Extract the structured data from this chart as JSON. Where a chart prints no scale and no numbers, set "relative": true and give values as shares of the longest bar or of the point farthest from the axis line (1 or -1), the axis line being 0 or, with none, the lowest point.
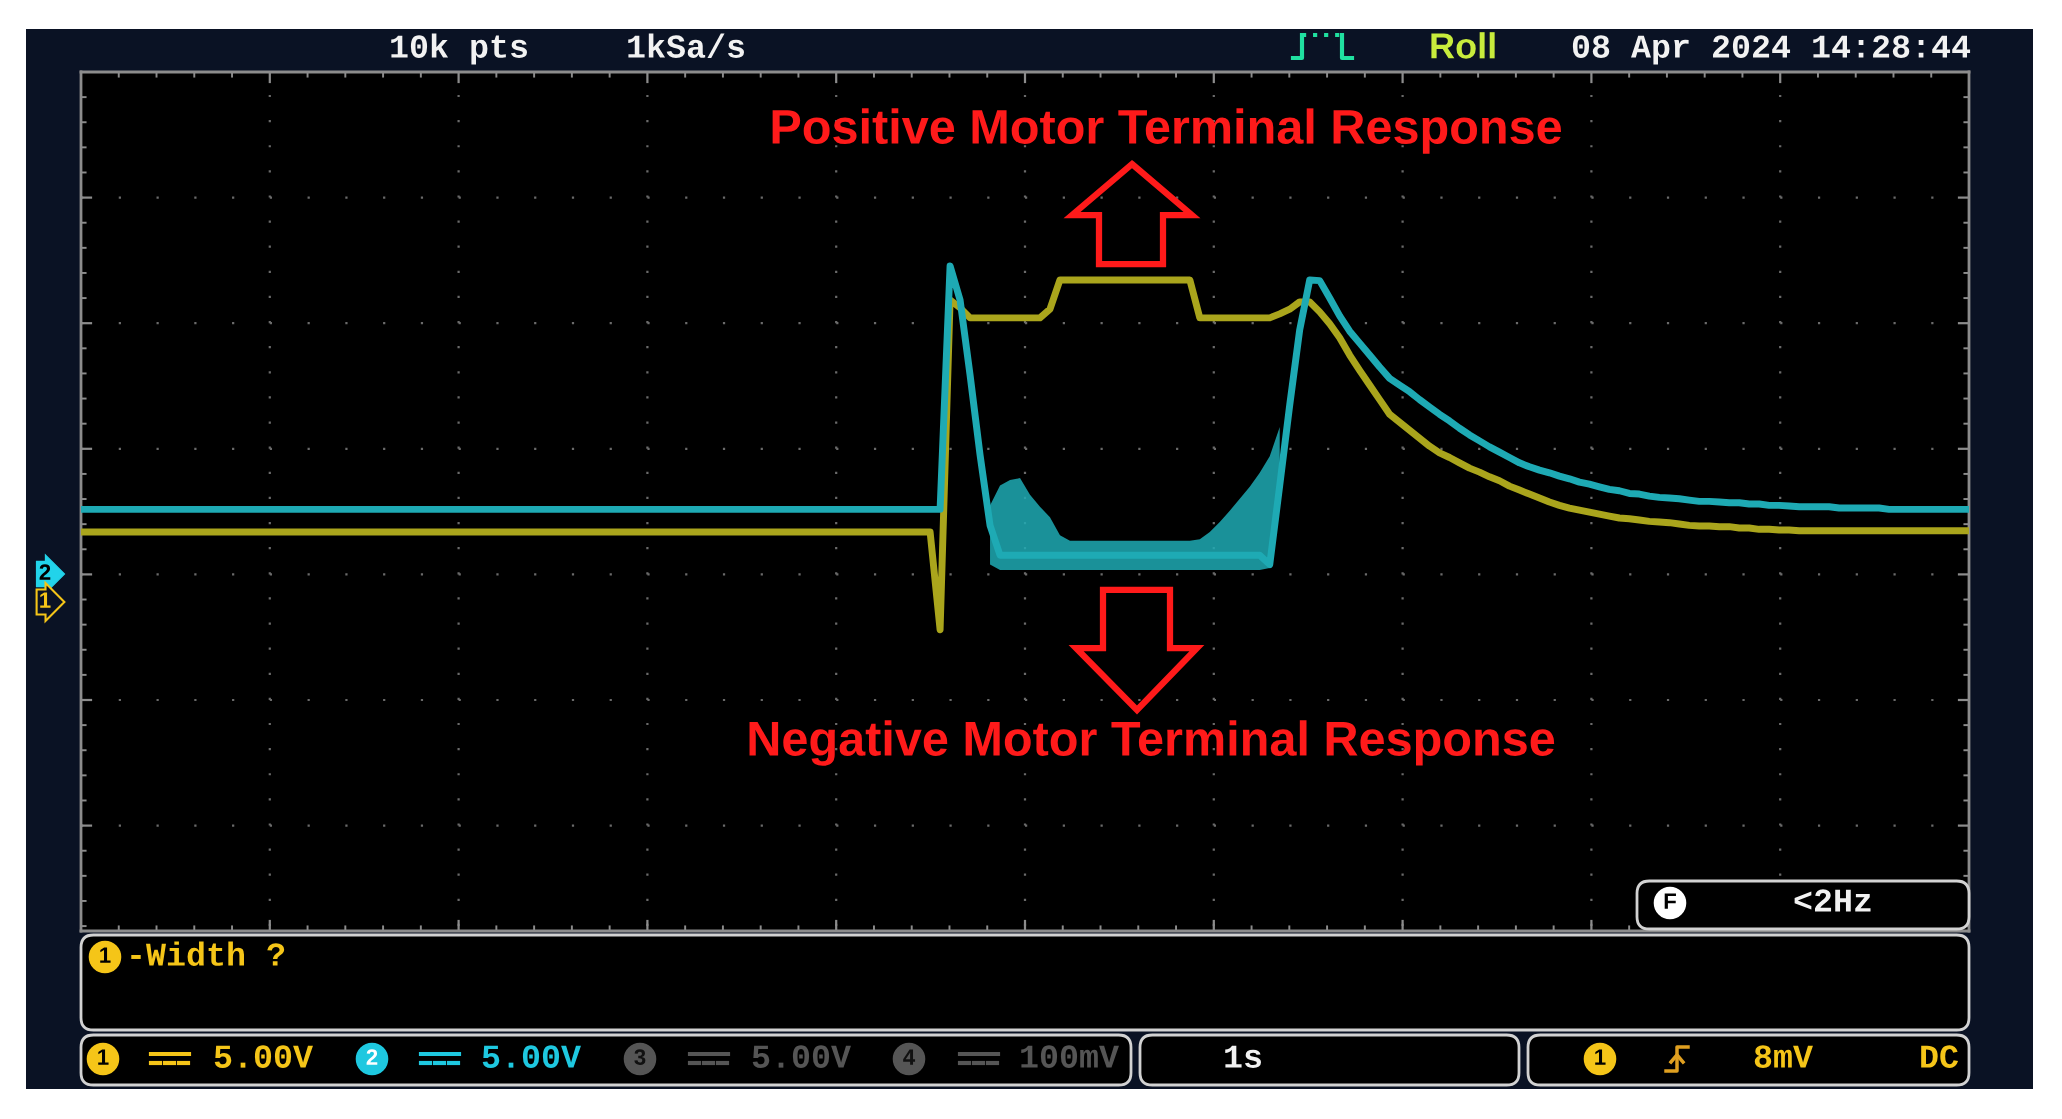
{
  "chart_data": {
    "type": "line",
    "relative": true,
    "grid": true,
    "categories": [
      null,
      null,
      null,
      null,
      null,
      null,
      null,
      null,
      null,
      null,
      null,
      null,
      null,
      null,
      null,
      null,
      null,
      null,
      null,
      null,
      null,
      null,
      null,
      null,
      null,
      null,
      null,
      null,
      null,
      null,
      null,
      null,
      null,
      null,
      null,
      null,
      null,
      null,
      null,
      null,
      null,
      null,
      null,
      null,
      null,
      null,
      null,
      null,
      null,
      null,
      null,
      null,
      null,
      null,
      null,
      null,
      null,
      null,
      null,
      null,
      null,
      null,
      null,
      null,
      null,
      null,
      null,
      null,
      null,
      null,
      null,
      null,
      null,
      null,
      null,
      null,
      null,
      null,
      null,
      null,
      null,
      null,
      null,
      null,
      null,
      null,
      null,
      null,
      null,
      null,
      null,
      null,
      null,
      null,
      null,
      null,
      null,
      null,
      null,
      null,
      null,
      null,
      null,
      null,
      null,
      null,
      null,
      null,
      null,
      null,
      null,
      null,
      null,
      null,
      null,
      null,
      null,
      null,
      null,
      null,
      null,
      null,
      null,
      null,
      null,
      null,
      null,
      null,
      null,
      null,
      null,
      null,
      null,
      null,
      null,
      null,
      null,
      null,
      null,
      null,
      null,
      null,
      null,
      null,
      null,
      null,
      null,
      null,
      null,
      null,
      null,
      null,
      null,
      null,
      null,
      null,
      null,
      null,
      null,
      null,
      null,
      null,
      null,
      null,
      null,
      null,
      null,
      null,
      null,
      null,
      null,
      null,
      null,
      null,
      null,
      null,
      null,
      null,
      null,
      null,
      null,
      null,
      null,
      null,
      null,
      null,
      null,
      null,
      null,
      null
    ],
    "series": [
      {
        "color": "#aaa51c",
        "values": [
          0.6,
          0.6,
          0.6,
          0.6,
          0.6,
          0.6,
          0.6,
          0.6,
          0.6,
          0.6,
          0.6,
          0.6,
          0.6,
          0.6,
          0.6,
          0.6,
          0.6,
          0.6,
          0.6,
          0.6,
          0.6,
          0.6,
          0.6,
          0.6,
          0.6,
          0.6,
          0.6,
          0.6,
          0.6,
          0.6,
          0.6,
          0.6,
          0.6,
          0.6,
          0.6,
          0.6,
          0.6,
          0.6,
          0.6,
          0.6,
          0.6,
          0.6,
          0.6,
          0.6,
          0.6,
          0.6,
          0.6,
          0.6,
          0.6,
          0.6,
          0.6,
          0.6,
          0.6,
          0.6,
          0.6,
          0.6,
          0.6,
          0.6,
          0.6,
          0.6,
          0.6,
          0.6,
          0.6,
          0.6,
          0.6,
          0.6,
          0.6,
          0.6,
          0.6,
          0.6,
          0.6,
          0.6,
          0.6,
          0.6,
          0.6,
          0.6,
          0.6,
          0.6,
          0.6,
          0.6,
          0.6,
          0.6,
          0.6,
          0.6,
          0.6,
          0.6,
          0.453,
          0.949,
          0.937,
          0.922,
          0.922,
          0.922,
          0.922,
          0.922,
          0.922,
          0.922,
          0.922,
          0.935,
          0.979,
          0.979,
          0.979,
          0.979,
          0.979,
          0.979,
          0.979,
          0.979,
          0.979,
          0.979,
          0.979,
          0.979,
          0.979,
          0.979,
          0.922,
          0.922,
          0.922,
          0.922,
          0.922,
          0.922,
          0.922,
          0.922,
          0.928,
          0.935,
          0.946,
          0.946,
          0.931,
          0.913,
          0.892,
          0.866,
          0.843,
          0.821,
          0.799,
          0.777,
          0.765,
          0.753,
          0.741,
          0.729,
          0.719,
          0.712,
          0.704,
          0.696,
          0.69,
          0.683,
          0.677,
          0.669,
          0.663,
          0.657,
          0.651,
          0.645,
          0.64,
          0.636,
          0.633,
          0.63,
          0.627,
          0.624,
          0.621,
          0.62,
          0.618,
          0.616,
          0.615,
          0.614,
          0.612,
          0.61,
          0.609,
          0.609,
          0.608,
          0.608,
          0.606,
          0.606,
          0.604,
          0.604,
          0.603,
          0.603,
          0.602,
          0.602,
          0.602,
          0.602,
          0.602,
          0.602,
          0.602,
          0.602,
          0.602,
          0.602,
          0.602,
          0.602,
          0.602,
          0.602,
          0.602,
          0.602,
          0.602,
          0.602
        ]
      },
      {
        "color": "#1eaab4",
        "values": [
          0.634,
          0.634,
          0.634,
          0.634,
          0.634,
          0.634,
          0.634,
          0.634,
          0.634,
          0.634,
          0.634,
          0.634,
          0.634,
          0.634,
          0.634,
          0.634,
          0.634,
          0.634,
          0.634,
          0.634,
          0.634,
          0.634,
          0.634,
          0.634,
          0.634,
          0.634,
          0.634,
          0.634,
          0.634,
          0.634,
          0.634,
          0.634,
          0.634,
          0.634,
          0.634,
          0.634,
          0.634,
          0.634,
          0.634,
          0.634,
          0.634,
          0.634,
          0.634,
          0.634,
          0.634,
          0.634,
          0.634,
          0.634,
          0.634,
          0.634,
          0.634,
          0.634,
          0.634,
          0.634,
          0.634,
          0.634,
          0.634,
          0.634,
          0.634,
          0.634,
          0.634,
          0.634,
          0.634,
          0.634,
          0.634,
          0.634,
          0.634,
          0.634,
          0.634,
          0.634,
          0.634,
          0.634,
          0.634,
          0.634,
          0.634,
          0.634,
          0.634,
          0.634,
          0.634,
          0.634,
          0.634,
          0.634,
          0.634,
          0.634,
          0.634,
          0.634,
          0.634,
          1,
          0.949,
          0.836,
          0.716,
          0.61,
          0.565,
          0.565,
          0.565,
          0.565,
          0.565,
          0.565,
          0.565,
          0.565,
          0.565,
          0.565,
          0.565,
          0.565,
          0.565,
          0.565,
          0.565,
          0.565,
          0.565,
          0.565,
          0.565,
          0.565,
          0.565,
          0.565,
          0.565,
          0.565,
          0.565,
          0.565,
          0.565,
          0.551,
          0.67,
          0.791,
          0.904,
          0.979,
          0.978,
          0.952,
          0.925,
          0.902,
          0.884,
          0.866,
          0.848,
          0.831,
          0.821,
          0.811,
          0.799,
          0.788,
          0.777,
          0.767,
          0.756,
          0.746,
          0.737,
          0.728,
          0.72,
          0.712,
          0.704,
          0.698,
          0.693,
          0.689,
          0.684,
          0.68,
          0.675,
          0.672,
          0.668,
          0.664,
          0.662,
          0.658,
          0.657,
          0.654,
          0.652,
          0.651,
          0.65,
          0.648,
          0.646,
          0.646,
          0.645,
          0.644,
          0.644,
          0.642,
          0.642,
          0.64,
          0.64,
          0.639,
          0.638,
          0.638,
          0.638,
          0.638,
          0.636,
          0.636,
          0.636,
          0.636,
          0.636,
          0.634,
          0.634,
          0.634,
          0.634,
          0.634,
          0.634,
          0.634,
          0.634,
          0.634
        ],
        "lower": [
          null,
          null,
          null,
          null,
          null,
          null,
          null,
          null,
          null,
          null,
          null,
          null,
          null,
          null,
          null,
          null,
          null,
          null,
          null,
          null,
          null,
          null,
          null,
          null,
          null,
          null,
          null,
          null,
          null,
          null,
          null,
          null,
          null,
          null,
          null,
          null,
          null,
          null,
          null,
          null,
          null,
          null,
          null,
          null,
          null,
          null,
          null,
          null,
          null,
          null,
          null,
          null,
          null,
          null,
          null,
          null,
          null,
          null,
          null,
          null,
          null,
          null,
          null,
          null,
          null,
          null,
          null,
          null,
          null,
          null,
          null,
          null,
          null,
          null,
          null,
          null,
          null,
          null,
          null,
          null,
          null,
          null,
          null,
          null,
          null,
          null,
          null,
          null,
          null,
          null,
          null,
          0.551,
          0.543,
          0.543,
          0.543,
          0.543,
          0.543,
          0.543,
          0.543,
          0.543,
          0.543,
          0.543,
          0.543,
          0.543,
          0.543,
          0.543,
          0.543,
          0.543,
          0.543,
          0.543,
          0.543,
          0.543,
          0.543,
          0.543,
          0.543,
          0.543,
          0.543,
          0.543,
          0.543,
          0.546,
          0.67,
          null,
          null,
          null,
          null,
          null,
          null,
          null,
          null,
          null,
          null,
          null,
          null,
          null,
          null,
          null,
          null,
          null,
          null,
          null,
          null,
          null,
          null,
          null,
          null,
          null,
          null,
          null,
          null,
          null,
          null,
          null,
          null,
          null,
          null,
          null,
          null,
          null,
          null,
          null,
          null,
          null,
          null,
          null,
          null,
          null,
          null,
          null,
          null,
          null,
          null,
          null,
          null,
          null,
          null,
          null,
          null,
          null,
          null,
          null,
          null,
          null,
          null,
          null,
          null,
          null,
          null,
          null,
          null,
          null
        ],
        "upper": [
          null,
          null,
          null,
          null,
          null,
          null,
          null,
          null,
          null,
          null,
          null,
          null,
          null,
          null,
          null,
          null,
          null,
          null,
          null,
          null,
          null,
          null,
          null,
          null,
          null,
          null,
          null,
          null,
          null,
          null,
          null,
          null,
          null,
          null,
          null,
          null,
          null,
          null,
          null,
          null,
          null,
          null,
          null,
          null,
          null,
          null,
          null,
          null,
          null,
          null,
          null,
          null,
          null,
          null,
          null,
          null,
          null,
          null,
          null,
          null,
          null,
          null,
          null,
          null,
          null,
          null,
          null,
          null,
          null,
          null,
          null,
          null,
          null,
          null,
          null,
          null,
          null,
          null,
          null,
          null,
          null,
          null,
          null,
          null,
          null,
          null,
          null,
          null,
          null,
          null,
          null,
          0.64,
          0.67,
          0.678,
          0.681,
          0.656,
          0.638,
          0.622,
          0.595,
          0.587,
          0.587,
          0.587,
          0.587,
          0.587,
          0.587,
          0.587,
          0.587,
          0.587,
          0.587,
          0.587,
          0.587,
          0.587,
          0.589,
          0.6,
          0.615,
          0.632,
          0.65,
          0.668,
          0.689,
          0.714,
          0.758,
          null,
          null,
          null,
          null,
          null,
          null,
          null,
          null,
          null,
          null,
          null,
          null,
          null,
          null,
          null,
          null,
          null,
          null,
          null,
          null,
          null,
          null,
          null,
          null,
          null,
          null,
          null,
          null,
          null,
          null,
          null,
          null,
          null,
          null,
          null,
          null,
          null,
          null,
          null,
          null,
          null,
          null,
          null,
          null,
          null,
          null,
          null,
          null,
          null,
          null,
          null,
          null,
          null,
          null,
          null,
          null,
          null,
          null,
          null,
          null,
          null,
          null,
          null,
          null,
          null,
          null,
          null,
          null,
          null
        ]
      }
    ],
    "annotations": [
      "10k pts",
      "1kSa/s",
      "Roll",
      "08 Apr 2024 14:28:44",
      "Positive Motor Terminal Response",
      "Negative Motor Terminal Response",
      "2",
      "1",
      "F",
      "<2Hz",
      "1",
      "-Width ?",
      "1",
      "5.00V",
      "2",
      "5.00V",
      "3",
      "5.00V",
      "4",
      "100mV",
      "1s",
      "1",
      "8mV",
      "DC"
    ]
  }
}
